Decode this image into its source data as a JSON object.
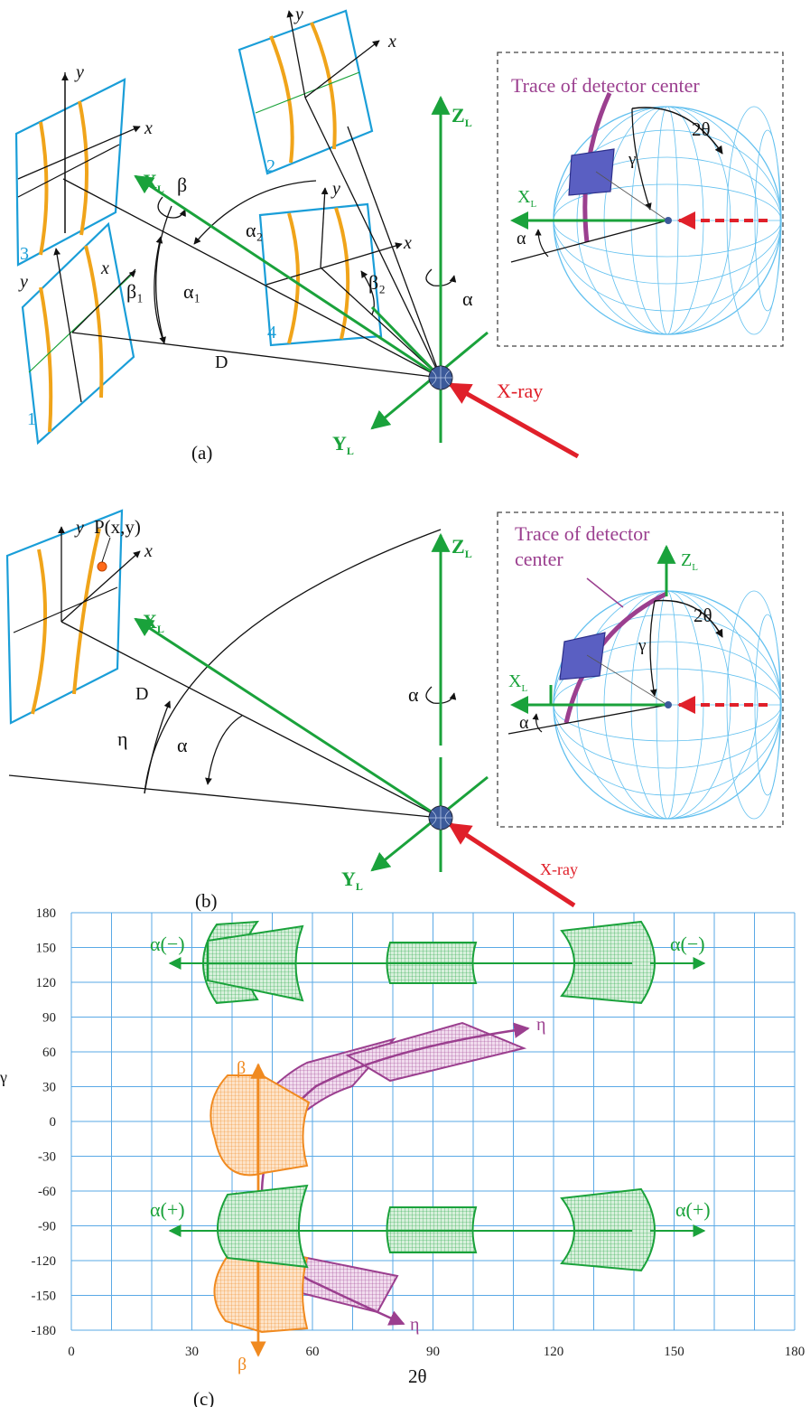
{
  "panel_a": {
    "caption": "(a)",
    "inset_title": "Trace of detector center",
    "labels": {
      "zl": "Z",
      "xl": "X",
      "yl": "Y",
      "sub": "L",
      "xray": "X-ray",
      "beta": "β",
      "beta1": "β₁",
      "beta2": "β₂",
      "alpha": "α",
      "alpha1": "α₁",
      "alpha2": "α₂",
      "d": "D",
      "x": "x",
      "y": "y",
      "det1": "1",
      "det2": "2",
      "det3": "3",
      "det4": "4",
      "two_theta": "2θ",
      "gamma": "γ"
    }
  },
  "panel_b": {
    "caption": "(b)",
    "inset_title_line1": "Trace of detector",
    "inset_title_line2": "center",
    "point_label": "P(x,y)",
    "labels": {
      "zl": "Z",
      "xl": "X",
      "yl": "Y",
      "sub": "L",
      "xray": "X-ray",
      "eta": "η",
      "alpha": "α",
      "d": "D",
      "x": "x",
      "y": "y",
      "two_theta": "2θ",
      "gamma": "γ"
    }
  },
  "panel_c": {
    "caption": "(c)",
    "xlabel": "2θ",
    "ylabel": "γ",
    "xticks": [
      "0",
      "30",
      "60",
      "90",
      "120",
      "150",
      "180"
    ],
    "yticks": [
      "180",
      "150",
      "120",
      "90",
      "60",
      "30",
      "0",
      "-30",
      "-60",
      "-90",
      "-120",
      "-150",
      "-180"
    ],
    "arrow_labels": {
      "alpha_minus_left": "α(−)",
      "alpha_minus_right": "α(−)",
      "alpha_plus_left": "α(+)",
      "alpha_plus_right": "α(+)",
      "beta_top": "β",
      "beta_bottom": "β",
      "eta_top": "η",
      "eta_bottom": "η"
    },
    "colors": {
      "grid": "#5aa9e6",
      "green": "#1aa23b",
      "magenta": "#9b3f8f",
      "orange": "#f08a20"
    }
  }
}
